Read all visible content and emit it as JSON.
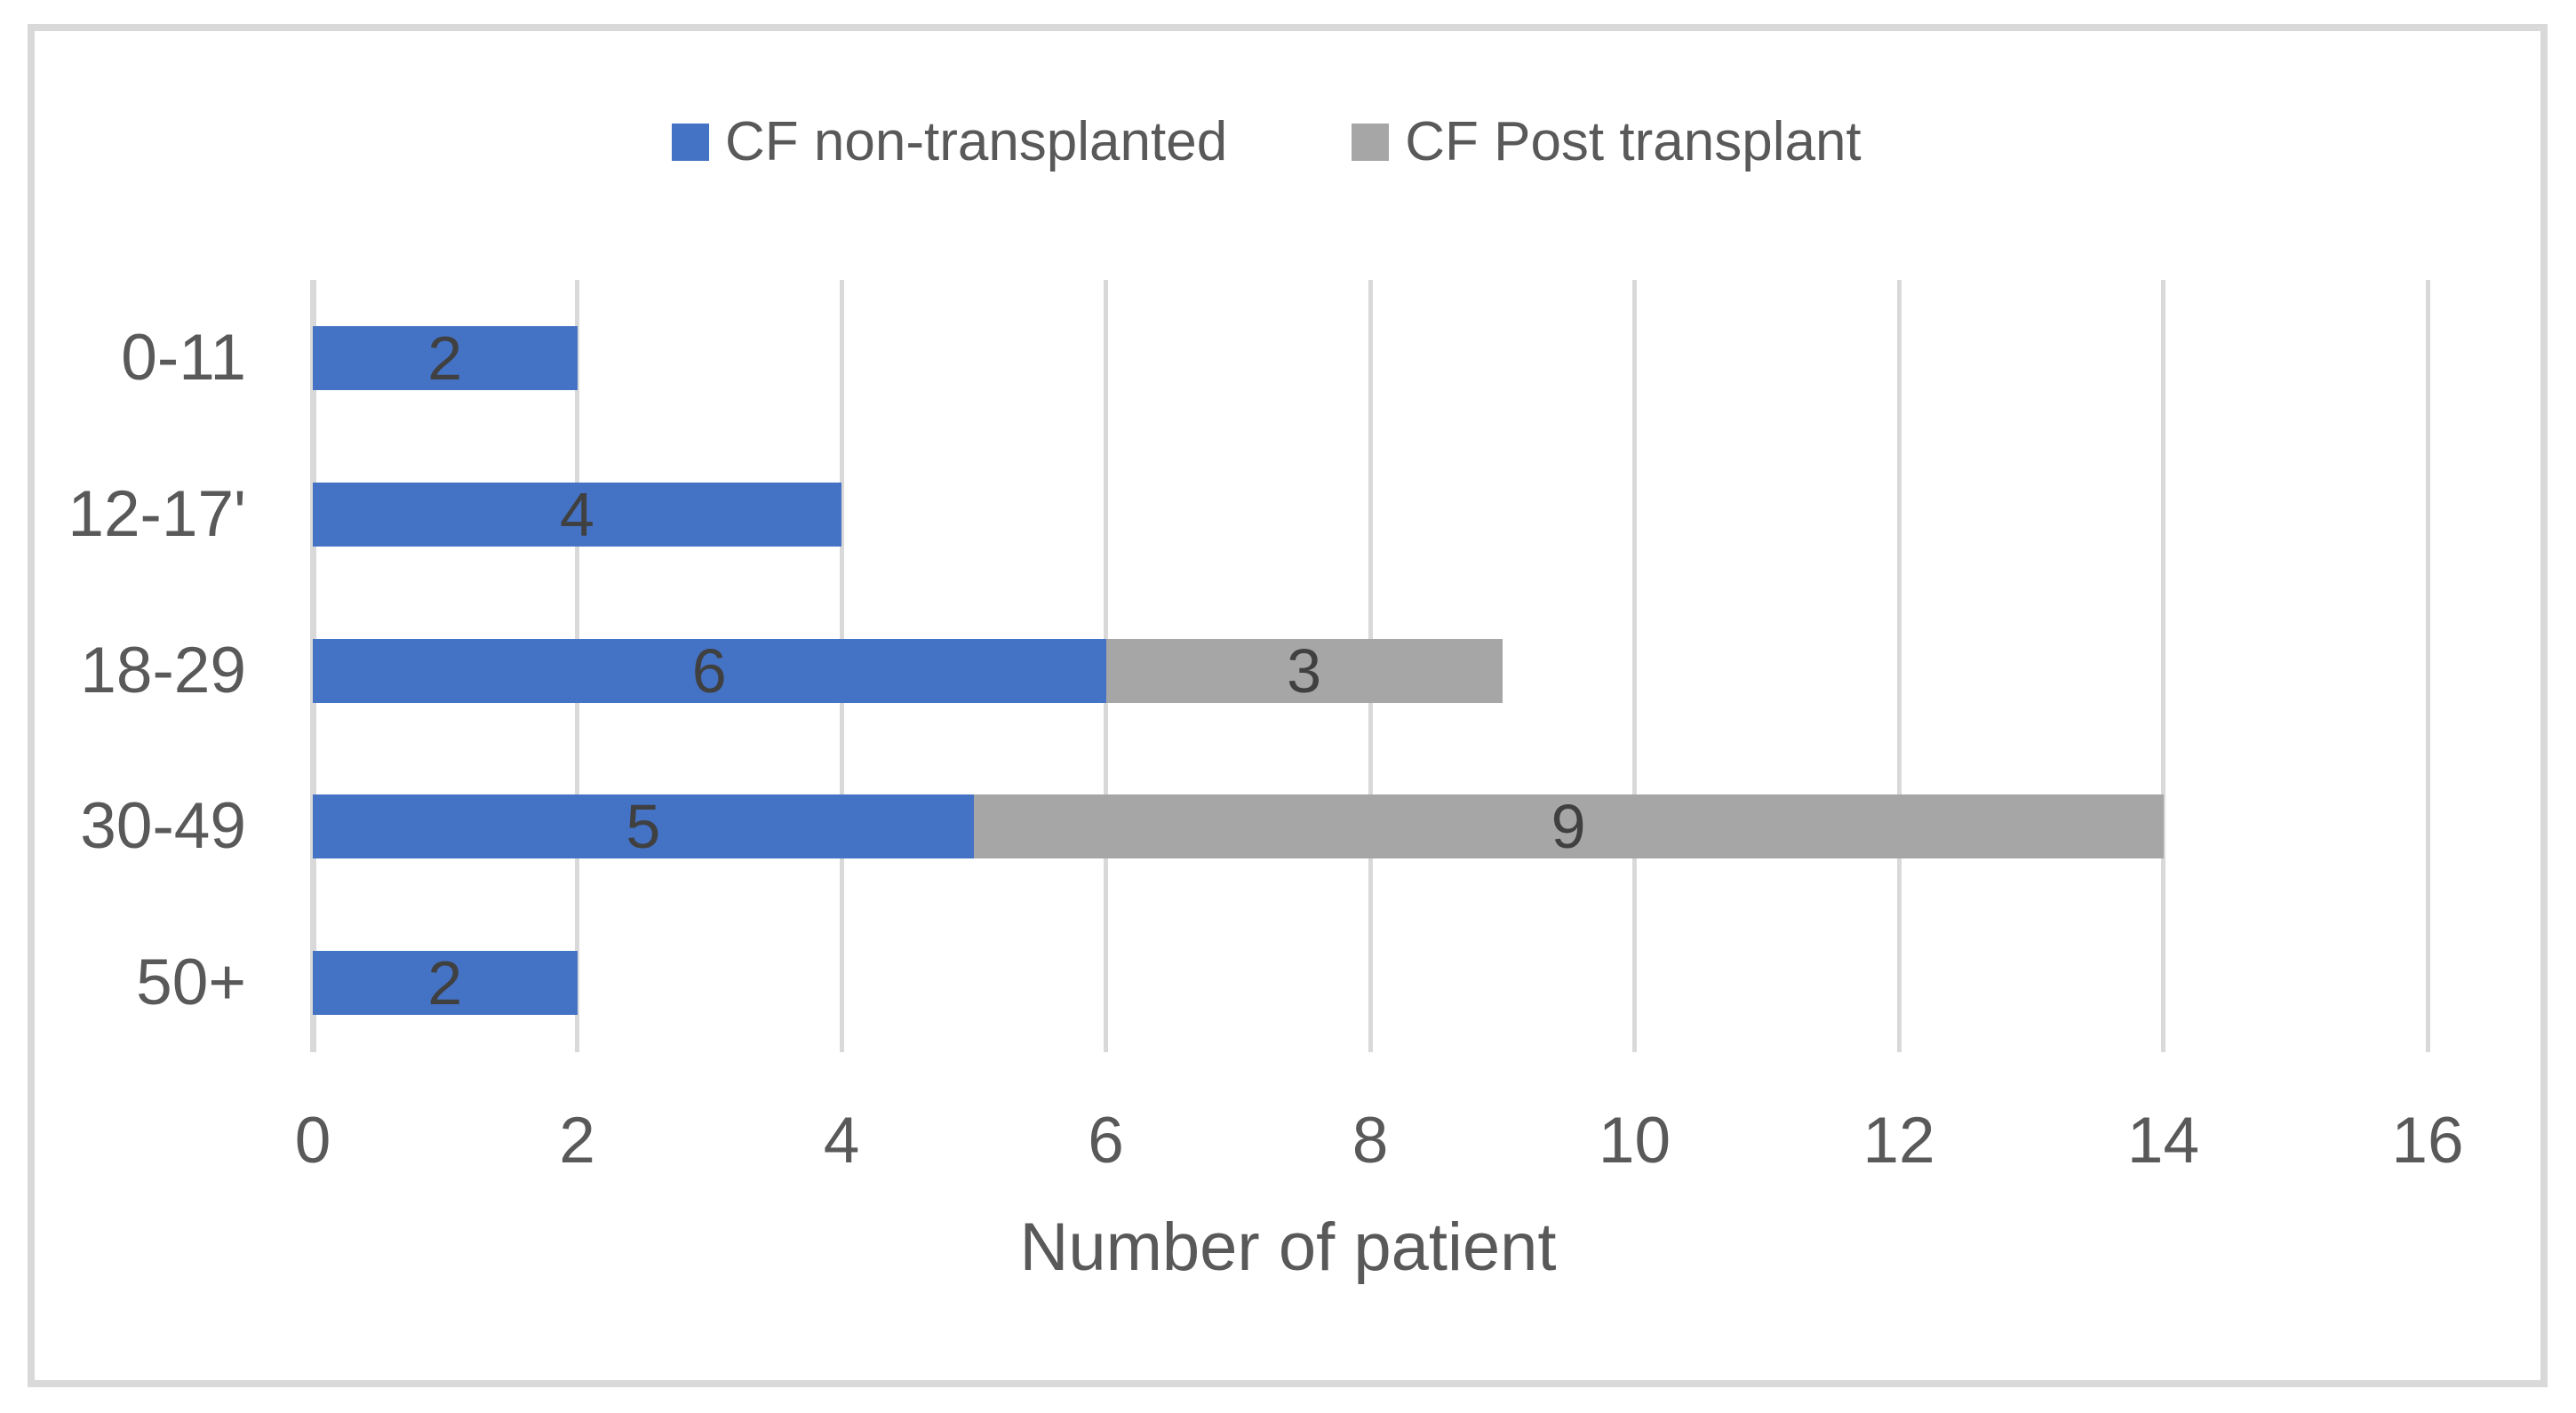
{
  "chart_data": {
    "type": "bar",
    "orientation": "horizontal",
    "stacked": true,
    "title": "",
    "xlabel": "Number of patient",
    "ylabel": "",
    "categories": [
      "0-11",
      "12-17'",
      "18-29",
      "30-49",
      "50+"
    ],
    "series": [
      {
        "name": "CF non-transplanted",
        "color": "#4472C4",
        "values": [
          2,
          4,
          6,
          5,
          2
        ]
      },
      {
        "name": "CF Post transplant",
        "color": "#A6A6A6",
        "values": [
          0,
          0,
          3,
          9,
          0
        ]
      }
    ],
    "totals": [
      2,
      4,
      9,
      14,
      2
    ],
    "xlim": [
      0,
      16
    ],
    "xticks": [
      0,
      2,
      4,
      6,
      8,
      10,
      12,
      14,
      16
    ],
    "grid": true,
    "data_labels": true,
    "legend_position": "top"
  },
  "colors": {
    "series_blue": "#4472C4",
    "series_gray": "#A6A6A6",
    "gridline": "#D9D9D9",
    "frame_border": "#D9D9D9",
    "axis_text": "#595959",
    "data_label_text": "#404040",
    "background": "#FFFFFF"
  }
}
